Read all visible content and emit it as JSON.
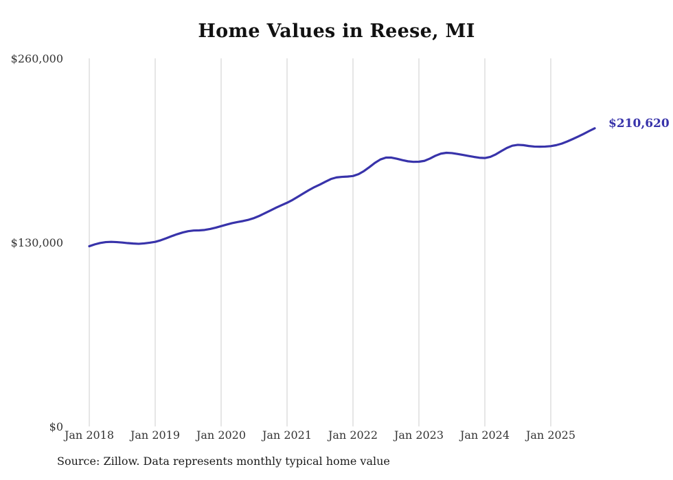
{
  "chart_data": {
    "type": "line",
    "title": "Home Values in Reese, MI",
    "source": "Source: Zillow. Data represents monthly typical home value",
    "end_label": "$210,620",
    "xlabel": "",
    "ylabel": "",
    "ylim": [
      0,
      260000
    ],
    "grid": "vertical-only",
    "legend": "none",
    "x_frequency": "monthly",
    "x_start": "2018-01",
    "x_end": "2025-09",
    "y_tick_labels": [
      "$260,000",
      "$130,000",
      "$0"
    ],
    "y_tick_values": [
      260000,
      130000,
      0
    ],
    "x_tick_labels": [
      "Jan 2018",
      "Jan 2019",
      "Jan 2020",
      "Jan 2021",
      "Jan 2022",
      "Jan 2023",
      "Jan 2024",
      "Jan 2025"
    ],
    "series": [
      {
        "name": "Typical home value",
        "values": [
          127300,
          128600,
          129600,
          130200,
          130400,
          130200,
          129900,
          129500,
          129200,
          129000,
          129300,
          129800,
          130400,
          131500,
          132900,
          134400,
          135800,
          137000,
          137900,
          138400,
          138500,
          138800,
          139500,
          140400,
          141500,
          142600,
          143600,
          144400,
          145100,
          146000,
          147200,
          148800,
          150700,
          152600,
          154500,
          156300,
          158000,
          160000,
          162300,
          164700,
          167000,
          169100,
          170900,
          172900,
          174800,
          175900,
          176300,
          176500,
          176900,
          178200,
          180400,
          183200,
          186200,
          188600,
          189900,
          189900,
          189100,
          188100,
          187300,
          186900,
          187000,
          187600,
          189200,
          191200,
          192700,
          193300,
          193100,
          192500,
          191800,
          191100,
          190400,
          189800,
          189600,
          190400,
          192200,
          194500,
          196700,
          198300,
          198900,
          198700,
          198100,
          197700,
          197600,
          197700,
          198000,
          198700,
          199800,
          201300,
          203000,
          204800,
          206700,
          208700,
          210620
        ]
      }
    ],
    "colors": {
      "line": "#3833aa",
      "grid": "#cccccc",
      "end_label": "#3833aa"
    }
  }
}
